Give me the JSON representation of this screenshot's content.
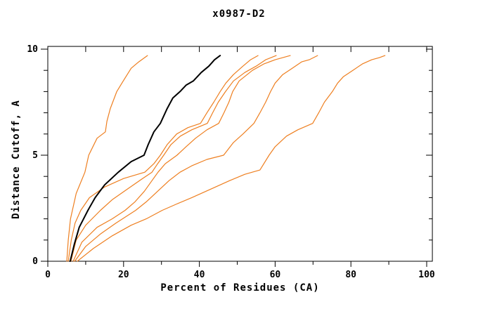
{
  "chart_data": {
    "type": "line",
    "title": "x0987-D2",
    "xlabel": "Percent of Residues (CA)",
    "ylabel": "Distance Cutoff, A",
    "xlim": [
      0,
      101.5
    ],
    "ylim": [
      0,
      10.13
    ],
    "x_major_ticks": [
      0,
      20,
      40,
      60,
      80,
      100
    ],
    "x_minor_ticks": [
      10,
      30,
      50,
      70,
      90
    ],
    "x_top_ticks": [
      10,
      20,
      30,
      40,
      50,
      60,
      70,
      80,
      90,
      100
    ],
    "y_major_ticks": [
      0,
      5,
      10
    ],
    "y_minor_ticks": [
      1,
      2,
      3,
      4,
      6,
      7,
      8,
      9
    ],
    "grid": false,
    "legend": "none",
    "colors": {
      "highlight_line": "#000000",
      "other_lines": "#ee7f20",
      "axis": "#000000",
      "background": "#ffffff"
    },
    "series": [
      {
        "name": "orange-line-1",
        "color": "#ee7f20",
        "width": 1.2,
        "points": [
          [
            5,
            0
          ],
          [
            5.4,
            1
          ],
          [
            6,
            2
          ],
          [
            6.5,
            2.4
          ],
          [
            7.5,
            3.2
          ],
          [
            9.8,
            4.2
          ],
          [
            10.8,
            5
          ],
          [
            13,
            5.8
          ],
          [
            15.2,
            6.1
          ],
          [
            15.6,
            6.6
          ],
          [
            16.5,
            7.2
          ],
          [
            18.2,
            8
          ],
          [
            19.9,
            8.5
          ],
          [
            22,
            9.1
          ],
          [
            24,
            9.4
          ],
          [
            26.3,
            9.7
          ]
        ]
      },
      {
        "name": "orange-line-2",
        "color": "#ee7f20",
        "width": 1.2,
        "points": [
          [
            5.4,
            0
          ],
          [
            6.2,
            1
          ],
          [
            7.2,
            1.8
          ],
          [
            8.7,
            2.4
          ],
          [
            11,
            3
          ],
          [
            15,
            3.5
          ],
          [
            20,
            3.9
          ],
          [
            25.6,
            4.2
          ],
          [
            28,
            4.6
          ],
          [
            29.7,
            5
          ],
          [
            31.5,
            5.5
          ],
          [
            34,
            6
          ],
          [
            37,
            6.3
          ],
          [
            40.3,
            6.5
          ],
          [
            42,
            7
          ],
          [
            43.8,
            7.5
          ],
          [
            45.5,
            8
          ],
          [
            47,
            8.4
          ],
          [
            49,
            8.8
          ],
          [
            51.5,
            9.2
          ],
          [
            53.5,
            9.5
          ],
          [
            55.5,
            9.7
          ]
        ]
      },
      {
        "name": "orange-line-3",
        "color": "#ee7f20",
        "width": 1.2,
        "points": [
          [
            6.1,
            0
          ],
          [
            7.5,
            1
          ],
          [
            10,
            1.7
          ],
          [
            13.9,
            2.4
          ],
          [
            17,
            2.9
          ],
          [
            21,
            3.4
          ],
          [
            25,
            3.9
          ],
          [
            27.5,
            4.2
          ],
          [
            29,
            4.6
          ],
          [
            30.6,
            5
          ],
          [
            32.5,
            5.5
          ],
          [
            35,
            5.9
          ],
          [
            38,
            6.2
          ],
          [
            42.1,
            6.5
          ],
          [
            43.5,
            7
          ],
          [
            45,
            7.5
          ],
          [
            46.9,
            8
          ],
          [
            49,
            8.5
          ],
          [
            52,
            8.9
          ],
          [
            55,
            9.2
          ],
          [
            57.5,
            9.5
          ],
          [
            60.3,
            9.7
          ]
        ]
      },
      {
        "name": "orange-line-4",
        "color": "#ee7f20",
        "width": 1.2,
        "points": [
          [
            6.7,
            0
          ],
          [
            9,
            0.9
          ],
          [
            13,
            1.6
          ],
          [
            17,
            2
          ],
          [
            20.4,
            2.4
          ],
          [
            23,
            2.8
          ],
          [
            25.5,
            3.3
          ],
          [
            27.5,
            3.8
          ],
          [
            29.1,
            4.2
          ],
          [
            31,
            4.6
          ],
          [
            34.1,
            5
          ],
          [
            36.5,
            5.4
          ],
          [
            39,
            5.8
          ],
          [
            42,
            6.2
          ],
          [
            45.1,
            6.5
          ],
          [
            46.5,
            7
          ],
          [
            47.8,
            7.5
          ],
          [
            48.8,
            8
          ],
          [
            50.5,
            8.5
          ],
          [
            54,
            9
          ],
          [
            57,
            9.3
          ],
          [
            60,
            9.5
          ],
          [
            64,
            9.7
          ]
        ]
      },
      {
        "name": "orange-line-5",
        "color": "#ee7f20",
        "width": 1.2,
        "points": [
          [
            7.1,
            0
          ],
          [
            10,
            0.7
          ],
          [
            14,
            1.3
          ],
          [
            18,
            1.8
          ],
          [
            23.2,
            2.4
          ],
          [
            26,
            2.8
          ],
          [
            29,
            3.3
          ],
          [
            32,
            3.8
          ],
          [
            34.9,
            4.2
          ],
          [
            38,
            4.5
          ],
          [
            42,
            4.8
          ],
          [
            46.4,
            5
          ],
          [
            49,
            5.6
          ],
          [
            51.5,
            6
          ],
          [
            54.4,
            6.5
          ],
          [
            56,
            7
          ],
          [
            57.5,
            7.5
          ],
          [
            58.8,
            8
          ],
          [
            60,
            8.4
          ],
          [
            62,
            8.8
          ],
          [
            64.5,
            9.1
          ],
          [
            67,
            9.4
          ],
          [
            69,
            9.5
          ],
          [
            71.2,
            9.7
          ]
        ]
      },
      {
        "name": "orange-line-6",
        "color": "#ee7f20",
        "width": 1.2,
        "points": [
          [
            7.8,
            0
          ],
          [
            12,
            0.6
          ],
          [
            17,
            1.2
          ],
          [
            22,
            1.7
          ],
          [
            26,
            2
          ],
          [
            30.2,
            2.4
          ],
          [
            34,
            2.7
          ],
          [
            38,
            3
          ],
          [
            43,
            3.4
          ],
          [
            48,
            3.8
          ],
          [
            52,
            4.1
          ],
          [
            56,
            4.3
          ],
          [
            58.4,
            5
          ],
          [
            60,
            5.4
          ],
          [
            63,
            5.9
          ],
          [
            66,
            6.2
          ],
          [
            69.9,
            6.5
          ],
          [
            71.5,
            7
          ],
          [
            73,
            7.5
          ],
          [
            75.1,
            8
          ],
          [
            76.5,
            8.4
          ],
          [
            78,
            8.7
          ],
          [
            80.5,
            9
          ],
          [
            83,
            9.3
          ],
          [
            85.5,
            9.5
          ],
          [
            87.5,
            9.6
          ],
          [
            89,
            9.7
          ]
        ]
      },
      {
        "name": "black-line",
        "color": "#000000",
        "width": 2,
        "points": [
          [
            5.9,
            0
          ],
          [
            7,
            0.8
          ],
          [
            8.3,
            1.6
          ],
          [
            10.6,
            2.4
          ],
          [
            12.5,
            3
          ],
          [
            15,
            3.6
          ],
          [
            18.6,
            4.2
          ],
          [
            22,
            4.7
          ],
          [
            25.4,
            5
          ],
          [
            26.5,
            5.5
          ],
          [
            28,
            6.1
          ],
          [
            29.7,
            6.5
          ],
          [
            31.5,
            7.2
          ],
          [
            33,
            7.7
          ],
          [
            34.9,
            8
          ],
          [
            36.5,
            8.3
          ],
          [
            38.4,
            8.5
          ],
          [
            40.5,
            8.9
          ],
          [
            42.5,
            9.2
          ],
          [
            44,
            9.5
          ],
          [
            45.5,
            9.7
          ]
        ]
      }
    ]
  }
}
